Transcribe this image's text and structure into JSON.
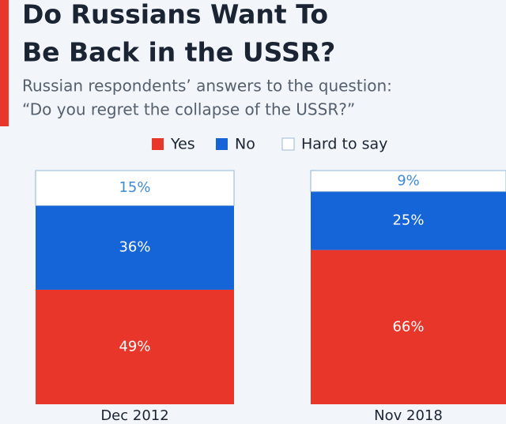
{
  "chart_data": {
    "type": "stacked_bar",
    "title": [
      "Do Russians Want To",
      "Be Back in the USSR?"
    ],
    "subtitle": [
      "Russian respondents’ answers to the question:",
      "“Do you regret the collapse of the USSR?”"
    ],
    "categories": [
      "Dec 2012",
      "Nov 2018"
    ],
    "series": [
      {
        "name": "Yes",
        "color": "#e8372a",
        "values": [
          49,
          66
        ],
        "value_labels": [
          "49%",
          "66%"
        ]
      },
      {
        "name": "No",
        "color": "#1565d8",
        "values": [
          36,
          25
        ],
        "value_labels": [
          "36%",
          "25%"
        ]
      },
      {
        "name": "Hard to say",
        "color": "#ffffff",
        "values": [
          15,
          9
        ],
        "value_labels": [
          "15%",
          "9%"
        ]
      }
    ]
  }
}
